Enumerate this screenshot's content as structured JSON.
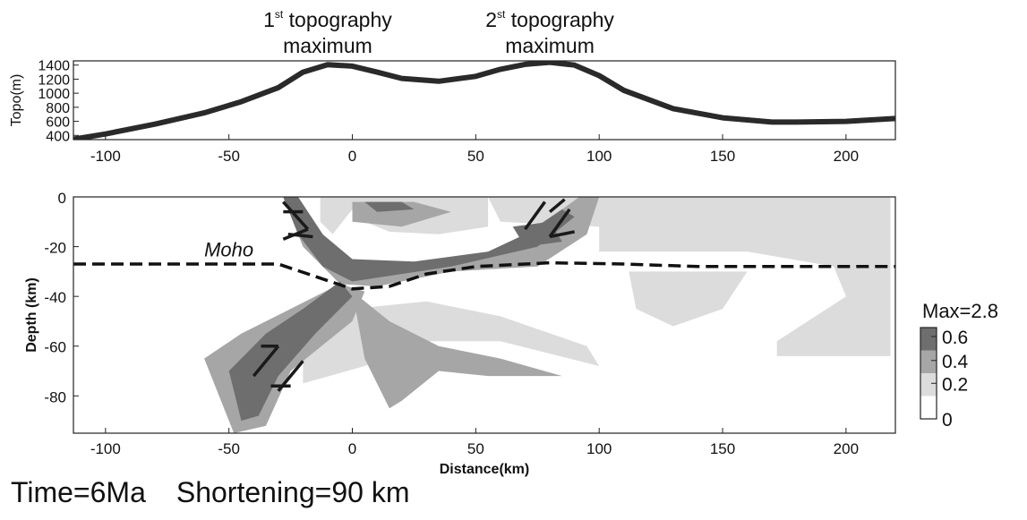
{
  "chart_data": [
    {
      "type": "line",
      "ylabel": "Topo(m)",
      "xlim": [
        -113,
        220
      ],
      "ylim": [
        340,
        1460
      ],
      "xticks": [
        -100,
        -50,
        0,
        50,
        100,
        150,
        200
      ],
      "yticks": [
        400,
        600,
        800,
        1000,
        1200,
        1400
      ],
      "annotations": [
        {
          "num": "1",
          "sup": "st",
          "line1": "topography",
          "line2": "maximum",
          "x": -10
        },
        {
          "num": "2",
          "sup": "st",
          "line1": "topography",
          "line2": "maximum",
          "x": 80
        }
      ],
      "series": [
        {
          "x": [
            -113,
            -100,
            -80,
            -60,
            -45,
            -30,
            -20,
            -10,
            0,
            10,
            20,
            35,
            50,
            60,
            70,
            80,
            90,
            100,
            110,
            130,
            150,
            170,
            180,
            200,
            220
          ],
          "y": [
            345,
            420,
            560,
            720,
            880,
            1080,
            1300,
            1405,
            1385,
            1300,
            1210,
            1170,
            1240,
            1340,
            1410,
            1440,
            1400,
            1250,
            1040,
            780,
            650,
            590,
            590,
            600,
            640
          ]
        }
      ]
    },
    {
      "type": "heatmap",
      "xlabel": "Distance(km)",
      "ylabel": "Depth (km)",
      "xlim": [
        -113,
        220
      ],
      "ylim": [
        -95,
        0
      ],
      "xticks": [
        -100,
        -50,
        0,
        50,
        100,
        150,
        200
      ],
      "yticks": [
        0,
        -20,
        -40,
        -60,
        -80
      ],
      "colorbar": {
        "title": "Max=2.8",
        "ticks": [
          "0.6",
          "0.4",
          "0.2",
          "0"
        ],
        "levels": [
          {
            "lo": 0.0,
            "hi": 0.1,
            "color": "#ffffff"
          },
          {
            "lo": 0.1,
            "hi": 0.25,
            "color": "#dcdcdc"
          },
          {
            "lo": 0.25,
            "hi": 0.45,
            "color": "#a6a6a6"
          },
          {
            "lo": 0.45,
            "hi": 0.7,
            "color": "#6e6e6e"
          }
        ]
      },
      "moho_label": "Moho",
      "moho": {
        "x": [
          -113,
          -30,
          -15,
          0,
          15,
          30,
          50,
          80,
          110,
          140,
          220
        ],
        "y": [
          -27,
          -27,
          -32,
          -37,
          -36,
          -31,
          -28,
          -26.5,
          -27,
          -28,
          -28
        ]
      },
      "regions": [
        {
          "level": 1,
          "pts": [
            [
              -13,
              0
            ],
            [
              0,
              0
            ],
            [
              0,
              -5
            ],
            [
              -8,
              -15
            ],
            [
              -13,
              -10
            ]
          ]
        },
        {
          "level": 1,
          "pts": [
            [
              0,
              0
            ],
            [
              55,
              0
            ],
            [
              55,
              -12
            ],
            [
              35,
              -15
            ],
            [
              15,
              -14
            ],
            [
              0,
              -8
            ]
          ]
        },
        {
          "level": 1,
          "pts": [
            [
              55,
              0
            ],
            [
              218,
              0
            ],
            [
              218,
              -64
            ],
            [
              172,
              -64
            ],
            [
              172,
              -58
            ],
            [
              200,
              -40
            ],
            [
              195,
              -28
            ],
            [
              160,
              -22
            ],
            [
              100,
              -22
            ],
            [
              100,
              -12
            ],
            [
              60,
              -10
            ]
          ]
        },
        {
          "level": 1,
          "pts": [
            [
              112,
              -30
            ],
            [
              160,
              -30
            ],
            [
              150,
              -45
            ],
            [
              130,
              -52
            ],
            [
              115,
              -45
            ]
          ]
        },
        {
          "level": 1,
          "pts": [
            [
              -20,
              -55
            ],
            [
              0,
              -45
            ],
            [
              30,
              -42
            ],
            [
              60,
              -48
            ],
            [
              95,
              -60
            ],
            [
              100,
              -68
            ],
            [
              60,
              -58
            ],
            [
              30,
              -58
            ],
            [
              5,
              -68
            ],
            [
              -20,
              -75
            ]
          ]
        },
        {
          "level": 2,
          "pts": [
            [
              -28,
              0
            ],
            [
              -22,
              0
            ],
            [
              -10,
              -18
            ],
            [
              5,
              -30
            ],
            [
              25,
              -28
            ],
            [
              55,
              -24
            ],
            [
              75,
              -15
            ],
            [
              85,
              -5
            ],
            [
              92,
              0
            ],
            [
              100,
              0
            ],
            [
              95,
              -15
            ],
            [
              75,
              -28
            ],
            [
              40,
              -30
            ],
            [
              10,
              -36
            ],
            [
              -5,
              -35
            ],
            [
              -20,
              -20
            ]
          ]
        },
        {
          "level": 2,
          "pts": [
            [
              -5,
              -35
            ],
            [
              5,
              -38
            ],
            [
              0,
              -50
            ],
            [
              -25,
              -70
            ],
            [
              -35,
              -92
            ],
            [
              -48,
              -95
            ],
            [
              -60,
              -65
            ],
            [
              -45,
              -55
            ],
            [
              -25,
              -45
            ]
          ]
        },
        {
          "level": 2,
          "pts": [
            [
              0,
              -38
            ],
            [
              15,
              -50
            ],
            [
              35,
              -60
            ],
            [
              60,
              -65
            ],
            [
              85,
              -72
            ],
            [
              55,
              -72
            ],
            [
              35,
              -70
            ],
            [
              20,
              -82
            ],
            [
              15,
              -85
            ],
            [
              5,
              -65
            ]
          ]
        },
        {
          "level": 2,
          "pts": [
            [
              0,
              -2
            ],
            [
              25,
              -2
            ],
            [
              40,
              -6
            ],
            [
              20,
              -12
            ],
            [
              0,
              -10
            ]
          ]
        },
        {
          "level": 3,
          "pts": [
            [
              -28,
              0
            ],
            [
              -22,
              0
            ],
            [
              -12,
              -15
            ],
            [
              0,
              -25
            ],
            [
              25,
              -26
            ],
            [
              55,
              -22
            ],
            [
              70,
              -15
            ],
            [
              85,
              -5
            ],
            [
              90,
              -8
            ],
            [
              75,
              -20
            ],
            [
              40,
              -28
            ],
            [
              0,
              -34
            ],
            [
              -12,
              -28
            ],
            [
              -22,
              -15
            ]
          ]
        },
        {
          "level": 3,
          "pts": [
            [
              -5,
              -34
            ],
            [
              0,
              -40
            ],
            [
              -15,
              -55
            ],
            [
              -30,
              -72
            ],
            [
              -38,
              -88
            ],
            [
              -45,
              -90
            ],
            [
              -50,
              -70
            ],
            [
              -35,
              -55
            ],
            [
              -20,
              -45
            ]
          ]
        },
        {
          "level": 3,
          "pts": [
            [
              5,
              -2
            ],
            [
              20,
              -2
            ],
            [
              25,
              -5
            ],
            [
              10,
              -6
            ]
          ]
        },
        {
          "level": 3,
          "pts": [
            [
              65,
              -12
            ],
            [
              80,
              -10
            ],
            [
              85,
              -18
            ],
            [
              70,
              -20
            ]
          ]
        }
      ],
      "arrows": [
        {
          "x1": -28,
          "y1": -2,
          "x2": -18,
          "y2": -13,
          "head": [
            [
              -28,
              -6
            ],
            [
              -20,
              -6
            ]
          ]
        },
        {
          "x1": -18,
          "y1": -13,
          "x2": -28,
          "y2": -17,
          "head": [
            [
              -16,
              -16
            ],
            [
              -26,
              -15
            ]
          ]
        },
        {
          "x1": 78,
          "y1": -2,
          "x2": 70,
          "y2": -13,
          "head": [
            [
              80,
              -6
            ],
            [
              86,
              -1
            ]
          ]
        },
        {
          "x1": 88,
          "y1": -5,
          "x2": 80,
          "y2": -16,
          "head": [
            [
              80,
              -16
            ],
            [
              90,
              -14
            ]
          ]
        },
        {
          "x1": -40,
          "y1": -72,
          "x2": -30,
          "y2": -60,
          "head": [
            [
              -37,
              -60
            ],
            [
              -30,
              -60
            ]
          ]
        },
        {
          "x1": -20,
          "y1": -66,
          "x2": -30,
          "y2": -78,
          "head": [
            [
              -33,
              -76
            ],
            [
              -25,
              -76
            ]
          ]
        }
      ]
    }
  ],
  "caption": {
    "time": "Time=6Ma",
    "shortening": "Shortening=90 km"
  }
}
